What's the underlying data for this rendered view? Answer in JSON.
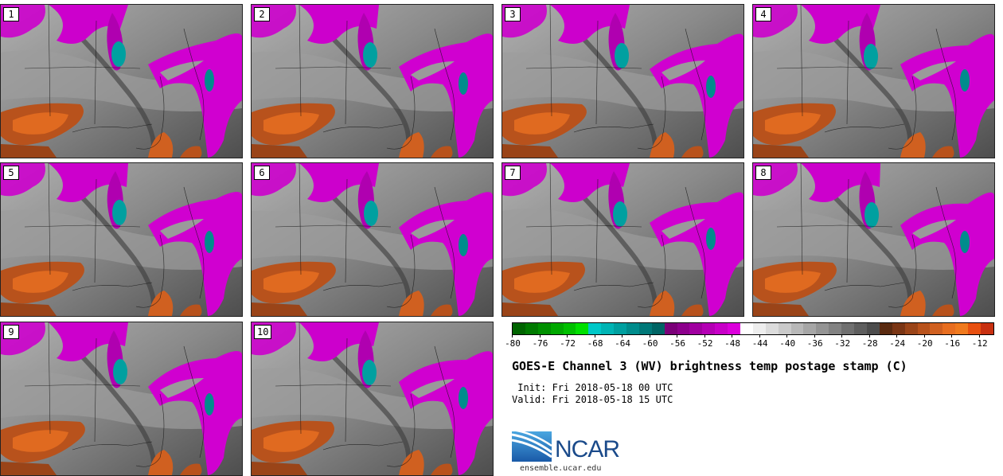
{
  "panels": [
    {
      "label": "1"
    },
    {
      "label": "2"
    },
    {
      "label": "3"
    },
    {
      "label": "4"
    },
    {
      "label": "5"
    },
    {
      "label": "6"
    },
    {
      "label": "7"
    },
    {
      "label": "8"
    },
    {
      "label": "9"
    },
    {
      "label": "10"
    }
  ],
  "colorbar": {
    "min": -80,
    "max": -10,
    "step": 2,
    "tick_labels": [
      "-80",
      "-76",
      "-72",
      "-68",
      "-64",
      "-60",
      "-56",
      "-52",
      "-48",
      "-44",
      "-40",
      "-36",
      "-32",
      "-28",
      "-24",
      "-20",
      "-16",
      "-12"
    ],
    "colors": [
      "#006400",
      "#007a00",
      "#009000",
      "#00a800",
      "#00c000",
      "#00e000",
      "#00c8c8",
      "#00b4b4",
      "#00a0a0",
      "#008c8c",
      "#007878",
      "#006464",
      "#7a0078",
      "#8c008c",
      "#a000a0",
      "#b400b4",
      "#c800c8",
      "#dc00dc",
      "#ffffff",
      "#eeeeee",
      "#dcdcdc",
      "#cacaca",
      "#b8b8b8",
      "#a6a6a6",
      "#949494",
      "#828282",
      "#707070",
      "#5e5e5e",
      "#4c4c4c",
      "#5a2a10",
      "#7a3514",
      "#9a4418",
      "#b8521c",
      "#d06020",
      "#e86e20",
      "#f07a1e",
      "#e85010",
      "#c83010"
    ]
  },
  "title": "GOES-E Channel 3 (WV) brightness temp postage stamp (C)",
  "init": " Init: Fri 2018-05-18 00 UTC",
  "valid": "Valid: Fri 2018-05-18 15 UTC",
  "logo": {
    "text": "NCAR",
    "site": "ensemble.ucar.edu"
  }
}
